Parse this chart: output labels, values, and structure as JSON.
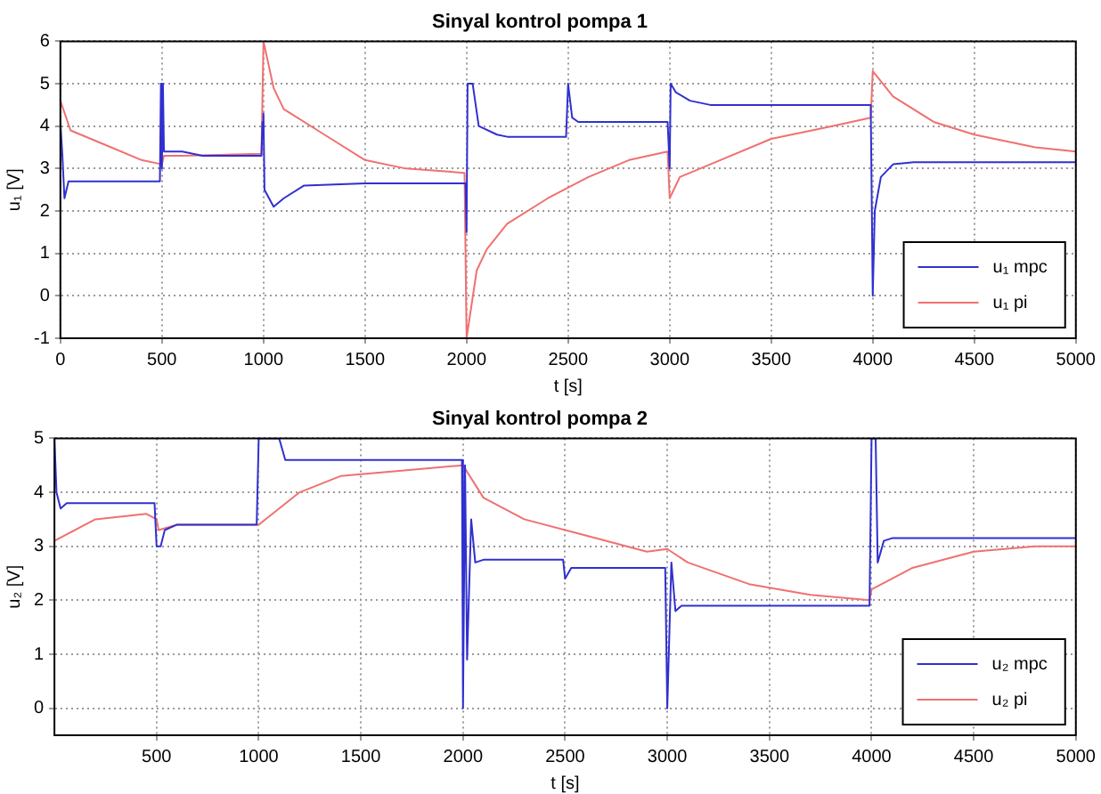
{
  "chart_data": [
    {
      "type": "line",
      "title": "Sinyal kontrol pompa 1",
      "xlabel": "t [s]",
      "ylabel": "u₁ [V]",
      "xlim": [
        0,
        5000
      ],
      "xticks": [
        0,
        500,
        1000,
        1500,
        2000,
        2500,
        3000,
        3500,
        4000,
        4500,
        5000
      ],
      "ylim": [
        -1,
        6
      ],
      "yticks": [
        -1,
        0,
        1,
        2,
        3,
        4,
        5,
        6
      ],
      "grid": true,
      "legend": "bottom right",
      "line_style": "solid",
      "marker": "none",
      "series": [
        {
          "name": "u₁ mpc",
          "color": "#3030d0",
          "x": [
            0,
            10,
            20,
            40,
            60,
            490,
            495,
            500,
            505,
            510,
            600,
            700,
            990,
            995,
            1000,
            1005,
            1050,
            1100,
            1200,
            1500,
            1995,
            2000,
            2005,
            2030,
            2060,
            2150,
            2200,
            2490,
            2500,
            2520,
            2550,
            2990,
            3000,
            3005,
            3030,
            3100,
            3200,
            3990,
            4000,
            4010,
            4040,
            4100,
            4200,
            5000
          ],
          "values": [
            4.1,
            3.3,
            2.3,
            2.7,
            2.7,
            2.7,
            5.0,
            3.0,
            5.0,
            3.4,
            3.4,
            3.3,
            3.3,
            4.1,
            4.3,
            2.5,
            2.1,
            2.3,
            2.6,
            2.65,
            2.65,
            1.5,
            5.0,
            5.0,
            4.0,
            3.8,
            3.75,
            3.75,
            5.0,
            4.2,
            4.1,
            4.1,
            3.0,
            5.0,
            4.8,
            4.6,
            4.5,
            4.5,
            0,
            2.0,
            2.8,
            3.1,
            3.15,
            3.15
          ]
        },
        {
          "name": "u₁ pi",
          "color": "#f07070",
          "x": [
            0,
            50,
            200,
            400,
            500,
            510,
            600,
            990,
            1000,
            1050,
            1100,
            1300,
            1500,
            1700,
            1990,
            2000,
            2050,
            2100,
            2200,
            2400,
            2600,
            2800,
            2990,
            3000,
            3050,
            3200,
            3500,
            3800,
            3990,
            4000,
            4100,
            4300,
            4500,
            4800,
            5000
          ],
          "values": [
            4.6,
            3.9,
            3.6,
            3.2,
            3.1,
            3.3,
            3.3,
            3.35,
            6.0,
            4.9,
            4.4,
            3.8,
            3.2,
            3.0,
            2.9,
            -1.0,
            0.6,
            1.1,
            1.7,
            2.3,
            2.8,
            3.2,
            3.4,
            2.3,
            2.8,
            3.1,
            3.7,
            4.0,
            4.2,
            5.3,
            4.7,
            4.1,
            3.8,
            3.5,
            3.4
          ]
        }
      ]
    },
    {
      "type": "line",
      "title": "Sinyal kontrol pompa 2",
      "xlabel": "t [s]",
      "ylabel": "u₂ [V]",
      "xlim": [
        0,
        5000
      ],
      "xticks": [
        500,
        1000,
        1500,
        2000,
        2500,
        3000,
        3500,
        4000,
        4500,
        5000
      ],
      "ylim": [
        -0.5,
        5
      ],
      "yticks": [
        0,
        1,
        2,
        3,
        4,
        5
      ],
      "grid": true,
      "legend": "bottom right",
      "line_style": "solid",
      "marker": "none",
      "series": [
        {
          "name": "u₂ mpc",
          "color": "#3030d0",
          "x": [
            0,
            10,
            30,
            60,
            490,
            500,
            520,
            540,
            600,
            990,
            1000,
            1100,
            1130,
            1995,
            2000,
            2010,
            2020,
            2040,
            2060,
            2100,
            2490,
            2500,
            2530,
            2990,
            3000,
            3020,
            3040,
            3070,
            3990,
            4000,
            4020,
            4030,
            4060,
            4100,
            5000
          ],
          "values": [
            5.0,
            4.0,
            3.7,
            3.8,
            3.8,
            3.0,
            3.0,
            3.3,
            3.4,
            3.4,
            5.0,
            5.0,
            4.6,
            4.6,
            0,
            4.5,
            0.9,
            3.5,
            2.7,
            2.75,
            2.75,
            2.4,
            2.6,
            2.6,
            0,
            2.7,
            1.8,
            1.9,
            1.9,
            5.0,
            5.0,
            2.7,
            3.1,
            3.15,
            3.15
          ]
        },
        {
          "name": "u₂ pi",
          "color": "#f07070",
          "x": [
            0,
            200,
            450,
            500,
            510,
            600,
            1000,
            1200,
            1400,
            1700,
            2000,
            2100,
            2300,
            2600,
            2900,
            3000,
            3100,
            3400,
            3700,
            3990,
            4000,
            4200,
            4500,
            4800,
            5000
          ],
          "values": [
            3.1,
            3.5,
            3.6,
            3.5,
            3.3,
            3.4,
            3.4,
            4.0,
            4.3,
            4.4,
            4.5,
            3.9,
            3.5,
            3.2,
            2.9,
            2.95,
            2.7,
            2.3,
            2.1,
            2.0,
            2.2,
            2.6,
            2.9,
            3.0,
            3.0
          ]
        }
      ]
    }
  ]
}
